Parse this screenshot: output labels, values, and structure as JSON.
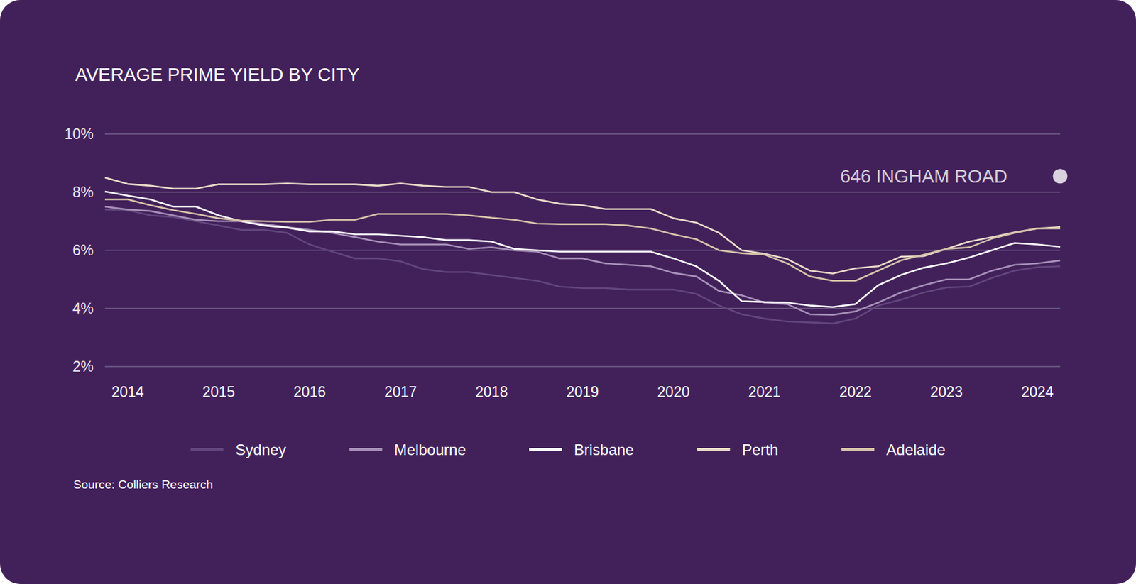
{
  "chart_data": {
    "type": "line",
    "title": "AVERAGE PRIME YIELD BY CITY",
    "categories": [
      null,
      "2014",
      null,
      null,
      null,
      "2015",
      null,
      null,
      null,
      "2016",
      null,
      null,
      null,
      "2017",
      null,
      null,
      null,
      "2018",
      null,
      null,
      null,
      "2019",
      null,
      null,
      null,
      "2020",
      null,
      null,
      null,
      "2021",
      null,
      null,
      null,
      "2022",
      null,
      null,
      null,
      "2023",
      null,
      null,
      null,
      "2024",
      null
    ],
    "series": [
      {
        "name": "Sydney",
        "color": "#62467d",
        "line_style": "solid",
        "values": [
          7.4,
          7.38,
          7.2,
          7.15,
          7.0,
          6.85,
          6.7,
          6.7,
          6.6,
          6.2,
          5.95,
          5.72,
          5.72,
          5.62,
          5.35,
          5.25,
          5.25,
          5.15,
          5.05,
          4.95,
          4.75,
          4.7,
          4.7,
          4.65,
          4.65,
          4.65,
          4.5,
          4.1,
          3.8,
          3.65,
          3.55,
          3.52,
          3.48,
          3.65,
          4.1,
          4.3,
          4.55,
          4.72,
          4.75,
          5.05,
          5.3,
          5.42,
          5.45
        ]
      },
      {
        "name": "Melbourne",
        "color": "#a690b8",
        "line_style": "solid",
        "values": [
          7.5,
          7.4,
          7.35,
          7.2,
          7.05,
          7.0,
          7.0,
          6.9,
          6.8,
          6.7,
          6.6,
          6.45,
          6.3,
          6.2,
          6.2,
          6.2,
          6.05,
          6.1,
          6.0,
          5.95,
          5.72,
          5.72,
          5.55,
          5.5,
          5.45,
          5.22,
          5.1,
          4.6,
          4.45,
          4.2,
          4.15,
          3.8,
          3.78,
          3.9,
          4.2,
          4.55,
          4.8,
          5.0,
          5.0,
          5.3,
          5.5,
          5.55,
          5.65
        ]
      },
      {
        "name": "Brisbane",
        "color": "#ffffff",
        "line_style": "solid",
        "values": [
          8.02,
          7.88,
          7.75,
          7.5,
          7.5,
          7.2,
          7.0,
          6.85,
          6.78,
          6.65,
          6.65,
          6.55,
          6.55,
          6.5,
          6.45,
          6.35,
          6.35,
          6.3,
          6.05,
          6.0,
          5.95,
          5.95,
          5.95,
          5.95,
          5.95,
          5.72,
          5.45,
          4.95,
          4.25,
          4.22,
          4.2,
          4.1,
          4.05,
          4.15,
          4.8,
          5.15,
          5.4,
          5.55,
          5.75,
          6.0,
          6.25,
          6.2,
          6.12
        ]
      },
      {
        "name": "Perth",
        "color": "#e9dcc8",
        "line_style": "solid",
        "values": [
          8.5,
          8.28,
          8.22,
          8.12,
          8.12,
          8.27,
          8.27,
          8.27,
          8.3,
          8.27,
          8.27,
          8.27,
          8.22,
          8.3,
          8.22,
          8.18,
          8.18,
          8.0,
          8.0,
          7.75,
          7.6,
          7.55,
          7.42,
          7.42,
          7.42,
          7.1,
          6.95,
          6.6,
          6.0,
          5.88,
          5.7,
          5.3,
          5.2,
          5.38,
          5.45,
          5.78,
          5.8,
          6.05,
          6.3,
          6.45,
          6.62,
          6.75,
          6.8
        ]
      },
      {
        "name": "Adelaide",
        "color": "#d5c3a9",
        "line_style": "solid",
        "values": [
          7.75,
          7.75,
          7.55,
          7.38,
          7.25,
          7.1,
          7.02,
          7.0,
          6.98,
          6.98,
          7.05,
          7.05,
          7.25,
          7.25,
          7.25,
          7.25,
          7.2,
          7.12,
          7.05,
          6.92,
          6.9,
          6.9,
          6.9,
          6.85,
          6.75,
          6.55,
          6.38,
          6.0,
          5.9,
          5.85,
          5.55,
          5.1,
          4.95,
          4.95,
          5.3,
          5.65,
          5.85,
          6.05,
          6.1,
          6.4,
          6.6,
          6.75,
          6.75
        ]
      }
    ],
    "ylim": [
      2,
      10
    ],
    "yticks": [
      {
        "value": 2,
        "label": "2%"
      },
      {
        "value": 4,
        "label": "4%"
      },
      {
        "value": 6,
        "label": "6%"
      },
      {
        "value": 8,
        "label": "8%"
      },
      {
        "value": 10,
        "label": "10%"
      }
    ],
    "grid": true,
    "legend": "bottom",
    "annotations": [
      {
        "text": "646 INGHAM ROAD",
        "value": 8.55,
        "color": "#ffffff",
        "marker": "circle"
      }
    ],
    "source": "Source: Colliers Research"
  }
}
